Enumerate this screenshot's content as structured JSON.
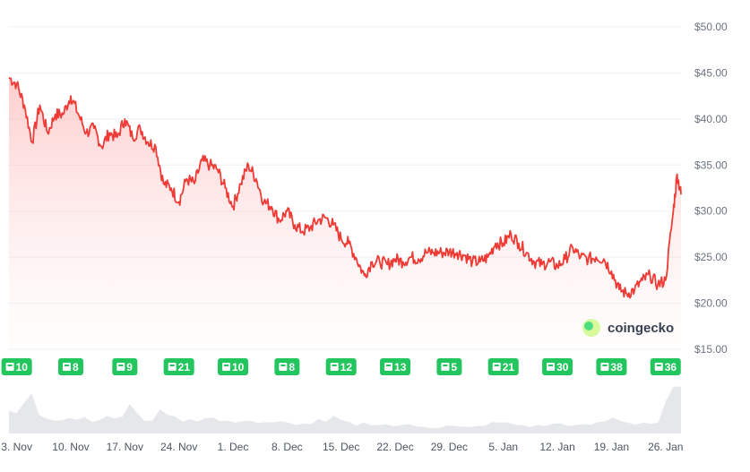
{
  "chart_data": {
    "type": "area",
    "title": "",
    "xlabel": "",
    "ylabel": "",
    "y_unit_prefix": "$",
    "ylim": [
      15,
      50
    ],
    "yticks": [
      15,
      20,
      25,
      30,
      35,
      40,
      45,
      50
    ],
    "ytick_labels": [
      "$15.00",
      "$20.00",
      "$25.00",
      "$30.00",
      "$35.00",
      "$40.00",
      "$45.00",
      "$50.00"
    ],
    "grid": true,
    "legend": "none",
    "x_start": "2 Nov",
    "x_end": "28 Jan",
    "xtick_labels": [
      "3. Nov",
      "10. Nov",
      "17. Nov",
      "24. Nov",
      "1. Dec",
      "8. Dec",
      "15. Dec",
      "22. Dec",
      "29. Dec",
      "5. Jan",
      "12. Jan",
      "19. Jan",
      "26. Jan"
    ],
    "series": [
      {
        "values": [
          {
            "x": "2 Nov",
            "y": 44.5
          },
          {
            "x": "3 Nov",
            "y": 43.8
          },
          {
            "x": "4 Nov",
            "y": 41.5
          },
          {
            "x": "5 Nov",
            "y": 37.5
          },
          {
            "x": "6 Nov",
            "y": 41.5
          },
          {
            "x": "7 Nov",
            "y": 38.5
          },
          {
            "x": "8 Nov",
            "y": 40.5
          },
          {
            "x": "9 Nov",
            "y": 40.5
          },
          {
            "x": "10 Nov",
            "y": 42.5
          },
          {
            "x": "11 Nov",
            "y": 40.5
          },
          {
            "x": "12 Nov",
            "y": 38.5
          },
          {
            "x": "13 Nov",
            "y": 39.0
          },
          {
            "x": "14 Nov",
            "y": 37.0
          },
          {
            "x": "15 Nov",
            "y": 38.5
          },
          {
            "x": "16 Nov",
            "y": 38.0
          },
          {
            "x": "17 Nov",
            "y": 40.0
          },
          {
            "x": "18 Nov",
            "y": 38.0
          },
          {
            "x": "19 Nov",
            "y": 39.0
          },
          {
            "x": "20 Nov",
            "y": 37.5
          },
          {
            "x": "21 Nov",
            "y": 37.0
          },
          {
            "x": "22 Nov",
            "y": 33.0
          },
          {
            "x": "23 Nov",
            "y": 32.5
          },
          {
            "x": "24 Nov",
            "y": 31.0
          },
          {
            "x": "25 Nov",
            "y": 33.5
          },
          {
            "x": "26 Nov",
            "y": 33.0
          },
          {
            "x": "27 Nov",
            "y": 35.5
          },
          {
            "x": "28 Nov",
            "y": 35.0
          },
          {
            "x": "29 Nov",
            "y": 34.5
          },
          {
            "x": "30 Nov",
            "y": 32.5
          },
          {
            "x": "1 Dec",
            "y": 30.5
          },
          {
            "x": "2 Dec",
            "y": 33.0
          },
          {
            "x": "3 Dec",
            "y": 35.0
          },
          {
            "x": "4 Dec",
            "y": 33.5
          },
          {
            "x": "5 Dec",
            "y": 31.0
          },
          {
            "x": "6 Dec",
            "y": 30.5
          },
          {
            "x": "7 Dec",
            "y": 29.0
          },
          {
            "x": "8 Dec",
            "y": 30.0
          },
          {
            "x": "9 Dec",
            "y": 28.5
          },
          {
            "x": "10 Dec",
            "y": 27.8
          },
          {
            "x": "11 Dec",
            "y": 28.2
          },
          {
            "x": "12 Dec",
            "y": 29.0
          },
          {
            "x": "13 Dec",
            "y": 29.3
          },
          {
            "x": "14 Dec",
            "y": 28.5
          },
          {
            "x": "15 Dec",
            "y": 27.0
          },
          {
            "x": "16 Dec",
            "y": 26.5
          },
          {
            "x": "17 Dec",
            "y": 24.8
          },
          {
            "x": "18 Dec",
            "y": 23.0
          },
          {
            "x": "19 Dec",
            "y": 24.5
          },
          {
            "x": "20 Dec",
            "y": 24.5
          },
          {
            "x": "21 Dec",
            "y": 24.2
          },
          {
            "x": "22 Dec",
            "y": 24.8
          },
          {
            "x": "23 Dec",
            "y": 24.5
          },
          {
            "x": "24 Dec",
            "y": 25.0
          },
          {
            "x": "25 Dec",
            "y": 24.8
          },
          {
            "x": "26 Dec",
            "y": 25.5
          },
          {
            "x": "27 Dec",
            "y": 25.5
          },
          {
            "x": "28 Dec",
            "y": 25.5
          },
          {
            "x": "29 Dec",
            "y": 25.6
          },
          {
            "x": "30 Dec",
            "y": 25.5
          },
          {
            "x": "31 Dec",
            "y": 25.2
          },
          {
            "x": "1 Jan",
            "y": 24.5
          },
          {
            "x": "2 Jan",
            "y": 24.5
          },
          {
            "x": "3 Jan",
            "y": 25.0
          },
          {
            "x": "4 Jan",
            "y": 26.5
          },
          {
            "x": "5 Jan",
            "y": 26.5
          },
          {
            "x": "6 Jan",
            "y": 27.5
          },
          {
            "x": "7 Jan",
            "y": 26.5
          },
          {
            "x": "8 Jan",
            "y": 25.5
          },
          {
            "x": "9 Jan",
            "y": 24.5
          },
          {
            "x": "10 Jan",
            "y": 24.2
          },
          {
            "x": "11 Jan",
            "y": 24.5
          },
          {
            "x": "12 Jan",
            "y": 24.0
          },
          {
            "x": "13 Jan",
            "y": 24.8
          },
          {
            "x": "14 Jan",
            "y": 26.0
          },
          {
            "x": "15 Jan",
            "y": 25.0
          },
          {
            "x": "16 Jan",
            "y": 24.8
          },
          {
            "x": "17 Jan",
            "y": 25.0
          },
          {
            "x": "18 Jan",
            "y": 24.8
          },
          {
            "x": "19 Jan",
            "y": 23.5
          },
          {
            "x": "20 Jan",
            "y": 21.5
          },
          {
            "x": "21 Jan",
            "y": 21.0
          },
          {
            "x": "22 Jan",
            "y": 21.5
          },
          {
            "x": "23 Jan",
            "y": 22.5
          },
          {
            "x": "24 Jan",
            "y": 23.0
          },
          {
            "x": "25 Jan",
            "y": 22.0
          },
          {
            "x": "26 Jan",
            "y": 22.5
          },
          {
            "x": "27 Jan",
            "y": 30.0
          },
          {
            "x": "27.5 Jan",
            "y": 34.0
          },
          {
            "x": "28 Jan",
            "y": 31.8
          }
        ],
        "volume": [
          0.45,
          0.4,
          0.55,
          0.85,
          0.4,
          0.35,
          0.3,
          0.3,
          0.32,
          0.3,
          0.32,
          0.28,
          0.3,
          0.3,
          0.32,
          0.35,
          0.55,
          0.35,
          0.28,
          0.3,
          0.4,
          0.45,
          0.3,
          0.28,
          0.3,
          0.28,
          0.3,
          0.3,
          0.25,
          0.22,
          0.25,
          0.28,
          0.25,
          0.22,
          0.2,
          0.2,
          0.22,
          0.2,
          0.2,
          0.18,
          0.2,
          0.25,
          0.22,
          0.3,
          0.25,
          0.2,
          0.18,
          0.2,
          0.2,
          0.18,
          0.18,
          0.15,
          0.15,
          0.18,
          0.15,
          0.15,
          0.12,
          0.12,
          0.15,
          0.14,
          0.12,
          0.12,
          0.14,
          0.18,
          0.2,
          0.22,
          0.2,
          0.18,
          0.16,
          0.15,
          0.15,
          0.16,
          0.18,
          0.2,
          0.18,
          0.15,
          0.16,
          0.18,
          0.2,
          0.25,
          0.3,
          0.28,
          0.22,
          0.2,
          0.22,
          0.2,
          0.22,
          0.55,
          0.85,
          0.8
        ],
        "color": "#ef3b36"
      }
    ],
    "news_badges": [
      {
        "x_label": "3. Nov",
        "count": "10"
      },
      {
        "x_label": "10. Nov",
        "count": "8"
      },
      {
        "x_label": "17. Nov",
        "count": "9"
      },
      {
        "x_label": "24. Nov",
        "count": "21"
      },
      {
        "x_label": "1. Dec",
        "count": "10"
      },
      {
        "x_label": "8. Dec",
        "count": "8"
      },
      {
        "x_label": "15. Dec",
        "count": "12"
      },
      {
        "x_label": "22. Dec",
        "count": "13"
      },
      {
        "x_label": "29. Dec",
        "count": "5"
      },
      {
        "x_label": "5. Jan",
        "count": "21"
      },
      {
        "x_label": "12. Jan",
        "count": "30"
      },
      {
        "x_label": "19. Jan",
        "count": "38"
      },
      {
        "x_label": "26. Jan",
        "count": "36"
      }
    ]
  },
  "watermark": {
    "text": "coingecko",
    "icon": "gecko-logo-icon"
  },
  "colors": {
    "line": "#ef3b36",
    "area": "#fde2e1",
    "badge": "#22c55e",
    "volume": "#e5e7eb",
    "grid": "#eef0f3"
  }
}
